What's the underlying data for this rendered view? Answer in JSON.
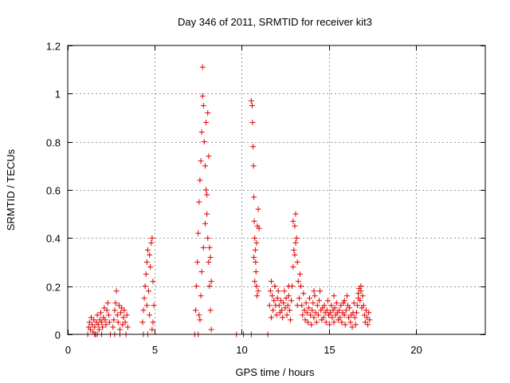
{
  "chart_data": {
    "type": "scatter",
    "title": "Day 346 of 2011, SRMTID for receiver kit3",
    "xlabel": "GPS time / hours",
    "ylabel": "SRMTID / TECUs",
    "xlim": [
      0,
      24
    ],
    "ylim": [
      0,
      1.2
    ],
    "xticks": [
      0,
      5,
      10,
      15,
      20
    ],
    "yticks": [
      0,
      0.2,
      0.4,
      0.6,
      0.8,
      1,
      1.2
    ],
    "xtick_labels": [
      "0",
      "5",
      "10",
      "15",
      "20"
    ],
    "ytick_labels": [
      "0",
      "0.2",
      "0.4",
      "0.6",
      "0.8",
      "1",
      "1.2"
    ],
    "grid": true,
    "marker": "+",
    "color": "#e00000",
    "series": [
      {
        "name": "SRMTID",
        "points": [
          [
            1.15,
            0.0
          ],
          [
            1.2,
            0.03
          ],
          [
            1.25,
            0.05
          ],
          [
            1.3,
            0.02
          ],
          [
            1.35,
            0.07
          ],
          [
            1.4,
            0.04
          ],
          [
            1.45,
            0.01
          ],
          [
            1.5,
            0.06
          ],
          [
            1.55,
            0.03
          ],
          [
            1.6,
            0.0
          ],
          [
            1.65,
            0.05
          ],
          [
            1.7,
            0.08
          ],
          [
            1.75,
            0.04
          ],
          [
            1.8,
            0.02
          ],
          [
            1.85,
            0.06
          ],
          [
            1.9,
            0.09
          ],
          [
            1.95,
            0.05
          ],
          [
            2.0,
            0.03
          ],
          [
            2.05,
            0.07
          ],
          [
            2.1,
            0.11
          ],
          [
            2.15,
            0.06
          ],
          [
            2.2,
            0.04
          ],
          [
            2.25,
            0.1
          ],
          [
            2.3,
            0.13
          ],
          [
            2.35,
            0.08
          ],
          [
            2.4,
            0.05
          ],
          [
            2.45,
            0.0
          ],
          [
            1.55,
            0.0
          ],
          [
            1.7,
            0.0
          ],
          [
            1.95,
            0.0
          ],
          [
            2.6,
            0.03
          ],
          [
            2.65,
            0.06
          ],
          [
            2.7,
            0.1
          ],
          [
            2.75,
            0.13
          ],
          [
            2.8,
            0.18
          ],
          [
            2.85,
            0.08
          ],
          [
            2.9,
            0.05
          ],
          [
            2.95,
            0.12
          ],
          [
            3.0,
            0.02
          ],
          [
            3.05,
            0.09
          ],
          [
            3.1,
            0.11
          ],
          [
            3.15,
            0.04
          ],
          [
            3.2,
            0.07
          ],
          [
            3.25,
            0.1
          ],
          [
            3.3,
            0.05
          ],
          [
            3.35,
            0.0
          ],
          [
            2.7,
            0.0
          ],
          [
            3.0,
            0.0
          ],
          [
            3.4,
            0.08
          ],
          [
            3.45,
            0.03
          ],
          [
            4.3,
            0.05
          ],
          [
            4.35,
            0.1
          ],
          [
            4.4,
            0.15
          ],
          [
            4.45,
            0.2
          ],
          [
            4.5,
            0.25
          ],
          [
            4.55,
            0.3
          ],
          [
            4.6,
            0.35
          ],
          [
            4.65,
            0.18
          ],
          [
            4.7,
            0.08
          ],
          [
            4.75,
            0.28
          ],
          [
            4.8,
            0.38
          ],
          [
            4.85,
            0.4
          ],
          [
            4.9,
            0.22
          ],
          [
            4.95,
            0.12
          ],
          [
            4.85,
            0.02
          ],
          [
            4.6,
            0.0
          ],
          [
            4.35,
            0.0
          ],
          [
            4.7,
            0.33
          ],
          [
            4.55,
            0.12
          ],
          [
            4.9,
            0.05
          ],
          [
            7.3,
            0.0
          ],
          [
            7.35,
            0.1
          ],
          [
            7.4,
            0.2
          ],
          [
            7.45,
            0.3
          ],
          [
            7.5,
            0.42
          ],
          [
            7.55,
            0.55
          ],
          [
            7.6,
            0.64
          ],
          [
            7.65,
            0.72
          ],
          [
            7.7,
            0.84
          ],
          [
            7.75,
            0.99
          ],
          [
            7.75,
            1.11
          ],
          [
            7.8,
            0.95
          ],
          [
            7.85,
            0.8
          ],
          [
            7.9,
            0.7
          ],
          [
            7.95,
            0.6
          ],
          [
            8.0,
            0.5
          ],
          [
            8.05,
            0.4
          ],
          [
            8.1,
            0.3
          ],
          [
            8.15,
            0.2
          ],
          [
            8.2,
            0.1
          ],
          [
            8.25,
            0.02
          ],
          [
            7.55,
            0.08
          ],
          [
            7.65,
            0.16
          ],
          [
            7.7,
            0.26
          ],
          [
            7.8,
            0.36
          ],
          [
            7.9,
            0.46
          ],
          [
            8.0,
            0.58
          ],
          [
            8.05,
            0.92
          ],
          [
            7.95,
            0.88
          ],
          [
            8.1,
            0.74
          ],
          [
            7.6,
            0.06
          ],
          [
            8.2,
            0.32
          ],
          [
            8.15,
            0.36
          ],
          [
            7.5,
            0.0
          ],
          [
            8.25,
            0.22
          ],
          [
            9.7,
            0.0
          ],
          [
            10.1,
            0.0
          ],
          [
            10.55,
            0.0
          ],
          [
            11.5,
            0.0
          ],
          [
            10.55,
            0.97
          ],
          [
            10.6,
            0.95
          ],
          [
            10.62,
            0.88
          ],
          [
            10.65,
            0.78
          ],
          [
            10.68,
            0.7
          ],
          [
            10.7,
            0.57
          ],
          [
            10.72,
            0.47
          ],
          [
            10.75,
            0.4
          ],
          [
            10.78,
            0.35
          ],
          [
            10.8,
            0.3
          ],
          [
            10.82,
            0.26
          ],
          [
            10.85,
            0.2
          ],
          [
            10.88,
            0.16
          ],
          [
            10.9,
            0.45
          ],
          [
            10.95,
            0.52
          ],
          [
            11.0,
            0.44
          ],
          [
            10.7,
            0.32
          ],
          [
            10.75,
            0.22
          ],
          [
            10.85,
            0.38
          ],
          [
            10.95,
            0.18
          ],
          [
            11.6,
            0.12
          ],
          [
            11.65,
            0.18
          ],
          [
            11.7,
            0.22
          ],
          [
            11.75,
            0.16
          ],
          [
            11.8,
            0.1
          ],
          [
            11.85,
            0.14
          ],
          [
            11.9,
            0.2
          ],
          [
            11.95,
            0.12
          ],
          [
            12.0,
            0.08
          ],
          [
            12.05,
            0.15
          ],
          [
            12.1,
            0.18
          ],
          [
            12.15,
            0.12
          ],
          [
            12.2,
            0.09
          ],
          [
            12.25,
            0.14
          ],
          [
            12.3,
            0.1
          ],
          [
            12.35,
            0.07
          ],
          [
            12.4,
            0.13
          ],
          [
            12.45,
            0.18
          ],
          [
            12.5,
            0.11
          ],
          [
            12.55,
            0.15
          ],
          [
            12.6,
            0.08
          ],
          [
            12.65,
            0.12
          ],
          [
            12.7,
            0.16
          ],
          [
            12.75,
            0.1
          ],
          [
            12.8,
            0.06
          ],
          [
            12.85,
            0.14
          ],
          [
            12.9,
            0.2
          ],
          [
            12.95,
            0.28
          ],
          [
            13.0,
            0.35
          ],
          [
            13.05,
            0.45
          ],
          [
            13.1,
            0.5
          ],
          [
            13.15,
            0.4
          ],
          [
            13.2,
            0.3
          ],
          [
            13.25,
            0.22
          ],
          [
            13.3,
            0.15
          ],
          [
            13.35,
            0.25
          ],
          [
            13.4,
            0.2
          ],
          [
            13.45,
            0.12
          ],
          [
            13.5,
            0.08
          ],
          [
            13.55,
            0.17
          ],
          [
            13.6,
            0.1
          ],
          [
            13.65,
            0.06
          ],
          [
            13.7,
            0.13
          ],
          [
            13.75,
            0.09
          ],
          [
            13.8,
            0.05
          ],
          [
            13.85,
            0.11
          ],
          [
            13.9,
            0.15
          ],
          [
            13.95,
            0.08
          ],
          [
            14.0,
            0.04
          ],
          [
            14.05,
            0.1
          ],
          [
            14.1,
            0.13
          ],
          [
            14.15,
            0.07
          ],
          [
            14.2,
            0.16
          ],
          [
            14.25,
            0.09
          ],
          [
            14.3,
            0.05
          ],
          [
            14.35,
            0.12
          ],
          [
            14.4,
            0.08
          ],
          [
            14.45,
            0.14
          ],
          [
            14.5,
            0.18
          ],
          [
            14.55,
            0.1
          ],
          [
            14.6,
            0.06
          ],
          [
            14.65,
            0.11
          ],
          [
            14.7,
            0.07
          ],
          [
            14.75,
            0.12
          ],
          [
            14.8,
            0.09
          ],
          [
            14.85,
            0.05
          ],
          [
            14.9,
            0.1
          ],
          [
            14.95,
            0.14
          ],
          [
            15.0,
            0.08
          ],
          [
            15.05,
            0.04
          ],
          [
            15.1,
            0.09
          ],
          [
            15.15,
            0.12
          ],
          [
            15.2,
            0.07
          ],
          [
            15.25,
            0.1
          ],
          [
            15.3,
            0.05
          ],
          [
            15.35,
            0.11
          ],
          [
            15.4,
            0.08
          ],
          [
            15.45,
            0.13
          ],
          [
            15.5,
            0.09
          ],
          [
            15.55,
            0.06
          ],
          [
            15.6,
            0.1
          ],
          [
            15.65,
            0.07
          ],
          [
            15.7,
            0.12
          ],
          [
            15.75,
            0.05
          ],
          [
            15.8,
            0.09
          ],
          [
            15.85,
            0.13
          ],
          [
            15.9,
            0.08
          ],
          [
            15.95,
            0.04
          ],
          [
            16.0,
            0.1
          ],
          [
            16.05,
            0.16
          ],
          [
            16.1,
            0.12
          ],
          [
            16.15,
            0.07
          ],
          [
            16.2,
            0.11
          ],
          [
            16.25,
            0.05
          ],
          [
            16.3,
            0.08
          ],
          [
            16.35,
            0.03
          ],
          [
            16.4,
            0.09
          ],
          [
            16.45,
            0.13
          ],
          [
            16.5,
            0.07
          ],
          [
            16.55,
            0.04
          ],
          [
            16.6,
            0.09
          ],
          [
            16.65,
            0.12
          ],
          [
            16.7,
            0.15
          ],
          [
            16.75,
            0.19
          ],
          [
            16.8,
            0.14
          ],
          [
            16.85,
            0.18
          ],
          [
            16.9,
            0.11
          ],
          [
            16.95,
            0.16
          ],
          [
            17.0,
            0.12
          ],
          [
            17.05,
            0.08
          ],
          [
            17.1,
            0.05
          ],
          [
            17.15,
            0.1
          ],
          [
            17.2,
            0.07
          ],
          [
            17.25,
            0.04
          ],
          [
            17.3,
            0.09
          ],
          [
            17.35,
            0.06
          ],
          [
            13.1,
            0.38
          ],
          [
            13.05,
            0.33
          ],
          [
            12.95,
            0.47
          ],
          [
            12.7,
            0.2
          ],
          [
            13.2,
            0.12
          ],
          [
            14.15,
            0.18
          ],
          [
            16.85,
            0.2
          ],
          [
            16.7,
            0.17
          ],
          [
            15.9,
            0.14
          ],
          [
            15.3,
            0.16
          ],
          [
            11.7,
            0.07
          ]
        ]
      }
    ]
  }
}
